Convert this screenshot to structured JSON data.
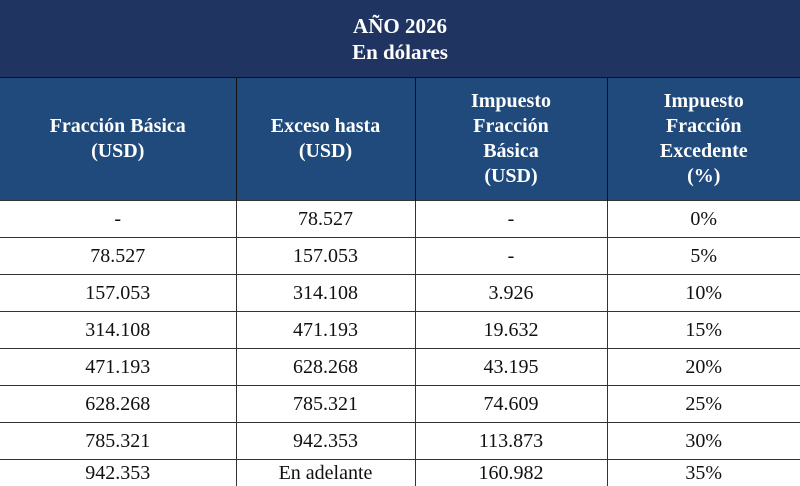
{
  "title": {
    "line1": "AÑO 2026",
    "line2": "En dólares"
  },
  "headers": [
    [
      "Fracción Básica",
      "(USD)"
    ],
    [
      "Exceso hasta",
      "(USD)"
    ],
    [
      "Impuesto",
      "Fracción",
      "Básica",
      "(USD)"
    ],
    [
      "Impuesto",
      "Fracción",
      "Excedente",
      "(%)"
    ]
  ],
  "rows": [
    [
      "-",
      "78.527",
      "-",
      "0%"
    ],
    [
      "78.527",
      "157.053",
      "-",
      "5%"
    ],
    [
      "157.053",
      "314.108",
      "3.926",
      "10%"
    ],
    [
      "314.108",
      "471.193",
      "19.632",
      "15%"
    ],
    [
      "471.193",
      "628.268",
      "43.195",
      "20%"
    ],
    [
      "628.268",
      "785.321",
      "74.609",
      "25%"
    ],
    [
      "785.321",
      "942.353",
      "113.873",
      "30%"
    ],
    [
      "942.353",
      "En adelante",
      "160.982",
      "35%"
    ]
  ],
  "colors": {
    "title_bg": "#1f3461",
    "header_bg": "#1f4a7b",
    "header_text": "#ffffff"
  }
}
